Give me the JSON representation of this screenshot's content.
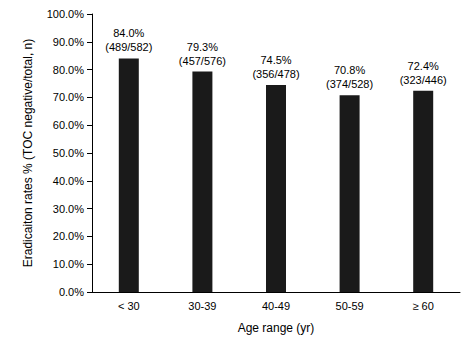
{
  "chart_data": {
    "type": "bar",
    "x_label": "Age range (yr)",
    "y_label": "Eradicaiton rates % (TOC negative/total, n)",
    "categories": [
      "< 30",
      "30-39",
      "40-49",
      "50-59",
      "≥ 60"
    ],
    "values": [
      84.0,
      79.3,
      74.5,
      70.8,
      72.4
    ],
    "value_labels": [
      "84.0%\n(489/582)",
      "79.3%\n(457/576)",
      "74.5%\n(356/478)",
      "70.8%\n(374/528)",
      "72.4%\n(323/446)"
    ],
    "data_labels": true,
    "color": "#1a1a1a",
    "ylim": [
      0,
      100
    ],
    "yticks": [
      {
        "value": 0,
        "label": "0.0%"
      },
      {
        "value": 10,
        "label": "10.0%"
      },
      {
        "value": 20,
        "label": "20.0%"
      },
      {
        "value": 30,
        "label": "30.0%"
      },
      {
        "value": 40,
        "label": "40.0%"
      },
      {
        "value": 50,
        "label": "50.0%"
      },
      {
        "value": 60,
        "label": "60.0%"
      },
      {
        "value": 70,
        "label": "70.0%"
      },
      {
        "value": 80,
        "label": "80.0%"
      },
      {
        "value": 90,
        "label": "90.0%"
      },
      {
        "value": 100,
        "label": "100.0%"
      }
    ],
    "grid": false
  }
}
